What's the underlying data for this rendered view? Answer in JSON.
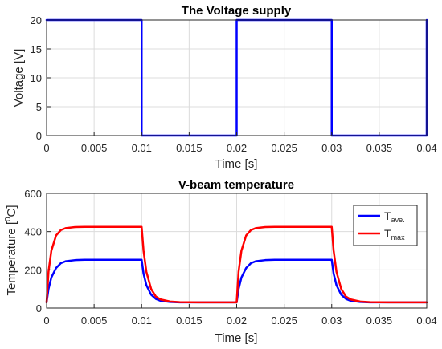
{
  "chart_data": [
    {
      "type": "line",
      "title": "The Voltage supply",
      "xlabel": "Time [s]",
      "ylabel": "Voltage [V]",
      "xlim": [
        0,
        0.04
      ],
      "ylim": [
        0,
        20
      ],
      "xticks": [
        "0",
        "0.005",
        "0.01",
        "0.015",
        "0.02",
        "0.025",
        "0.03",
        "0.035",
        "0.04"
      ],
      "yticks": [
        "0",
        "5",
        "10",
        "15",
        "20"
      ],
      "grid": true,
      "series": [
        {
          "color": "#0000ff",
          "x": [
            0,
            0.01,
            0.01,
            0.02,
            0.02,
            0.03,
            0.03,
            0.04,
            0.04
          ],
          "y": [
            20,
            20,
            0,
            0,
            20,
            20,
            0,
            0,
            20
          ]
        }
      ]
    },
    {
      "type": "line",
      "title": "V-beam temperature",
      "xlabel": "Time [s]",
      "ylabel_main": "Temperature [",
      "ylabel_sup": "0",
      "ylabel_end": "C]",
      "xlim": [
        0,
        0.04
      ],
      "ylim": [
        0,
        600
      ],
      "xticks": [
        "0",
        "0.005",
        "0.01",
        "0.015",
        "0.02",
        "0.025",
        "0.03",
        "0.035",
        "0.04"
      ],
      "yticks": [
        "0",
        "200",
        "400",
        "600"
      ],
      "grid": true,
      "legend_position": "top-right",
      "series": [
        {
          "name_main": "T",
          "name_sub": "ave.",
          "color": "#0000ff",
          "x": [
            0,
            0.0002,
            0.0005,
            0.001,
            0.0015,
            0.002,
            0.003,
            0.004,
            0.006,
            0.008,
            0.01,
            0.0102,
            0.0105,
            0.011,
            0.0115,
            0.012,
            0.013,
            0.014,
            0.016,
            0.018,
            0.02,
            0.0202,
            0.0205,
            0.021,
            0.0215,
            0.022,
            0.023,
            0.024,
            0.026,
            0.028,
            0.03,
            0.0302,
            0.0305,
            0.031,
            0.0315,
            0.032,
            0.033,
            0.034,
            0.036,
            0.038,
            0.04
          ],
          "y": [
            30,
            100,
            160,
            210,
            235,
            245,
            251,
            253,
            253,
            253,
            253,
            180,
            120,
            70,
            48,
            38,
            32,
            30,
            30,
            30,
            30,
            100,
            160,
            210,
            235,
            245,
            251,
            253,
            253,
            253,
            253,
            180,
            120,
            70,
            48,
            38,
            32,
            30,
            30,
            30,
            30
          ]
        },
        {
          "name_main": "T",
          "name_sub": "max",
          "color": "#ff0000",
          "x": [
            0,
            0.0002,
            0.0005,
            0.001,
            0.0015,
            0.002,
            0.003,
            0.004,
            0.006,
            0.008,
            0.01,
            0.0102,
            0.0105,
            0.011,
            0.0115,
            0.012,
            0.013,
            0.014,
            0.016,
            0.018,
            0.02,
            0.0202,
            0.0205,
            0.021,
            0.0215,
            0.022,
            0.023,
            0.024,
            0.026,
            0.028,
            0.03,
            0.0302,
            0.0305,
            0.031,
            0.0315,
            0.032,
            0.033,
            0.034,
            0.036,
            0.038,
            0.04
          ],
          "y": [
            30,
            190,
            300,
            380,
            408,
            418,
            424,
            425,
            425,
            425,
            425,
            300,
            190,
            100,
            60,
            45,
            34,
            31,
            30,
            30,
            30,
            190,
            300,
            380,
            408,
            418,
            424,
            425,
            425,
            425,
            425,
            300,
            190,
            100,
            60,
            45,
            34,
            31,
            30,
            30,
            30
          ]
        }
      ]
    }
  ]
}
